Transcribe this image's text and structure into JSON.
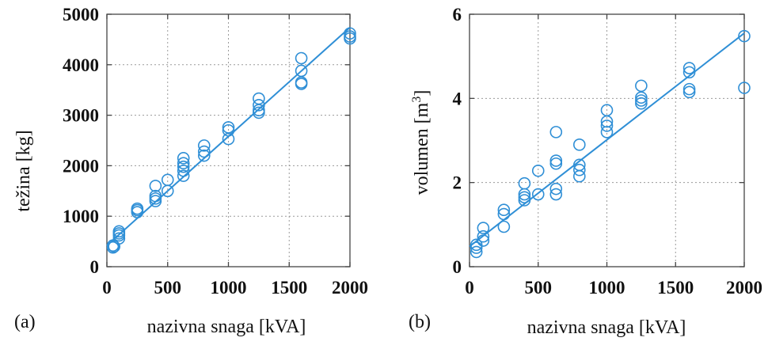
{
  "colors": {
    "series": "#2f8fd6",
    "frame": "#444444",
    "grid": "#9a9a9a"
  },
  "chart_data": [
    {
      "panel_label": "(a)",
      "type": "scatter",
      "xlabel": "nazivna snaga [kVA]",
      "ylabel": "težina [kg]",
      "xlim": [
        0,
        2000
      ],
      "ylim": [
        0,
        5000
      ],
      "xticks": [
        0,
        500,
        1000,
        1500,
        2000
      ],
      "yticks": [
        0,
        1000,
        2000,
        3000,
        4000,
        5000
      ],
      "xtick_labels": [
        "0",
        "500",
        "1000",
        "1500",
        "2000"
      ],
      "ytick_labels": [
        "0",
        "1000",
        "2000",
        "3000",
        "4000",
        "5000"
      ],
      "grid": true,
      "points": [
        [
          50,
          380
        ],
        [
          50,
          420
        ],
        [
          60,
          400
        ],
        [
          100,
          560
        ],
        [
          100,
          620
        ],
        [
          100,
          660
        ],
        [
          100,
          700
        ],
        [
          250,
          1080
        ],
        [
          250,
          1120
        ],
        [
          250,
          1150
        ],
        [
          400,
          1300
        ],
        [
          400,
          1350
        ],
        [
          400,
          1400
        ],
        [
          400,
          1600
        ],
        [
          500,
          1500
        ],
        [
          500,
          1720
        ],
        [
          630,
          1800
        ],
        [
          630,
          1900
        ],
        [
          630,
          1980
        ],
        [
          630,
          2050
        ],
        [
          630,
          2150
        ],
        [
          800,
          2200
        ],
        [
          800,
          2280
        ],
        [
          800,
          2400
        ],
        [
          1000,
          2530
        ],
        [
          1000,
          2700
        ],
        [
          1000,
          2760
        ],
        [
          1250,
          3050
        ],
        [
          1250,
          3100
        ],
        [
          1250,
          3200
        ],
        [
          1250,
          3330
        ],
        [
          1600,
          3620
        ],
        [
          1600,
          3650
        ],
        [
          1600,
          3880
        ],
        [
          1600,
          4130
        ],
        [
          2000,
          4520
        ],
        [
          2000,
          4560
        ],
        [
          2000,
          4620
        ]
      ],
      "fit_line": {
        "x": [
          0,
          2000
        ],
        "y": [
          420,
          4740
        ]
      }
    },
    {
      "panel_label": "(b)",
      "type": "scatter",
      "xlabel": "nazivna snaga [kVA]",
      "ylabel": "volumen [m",
      "ylabel_sup": "3",
      "ylabel_end": "]",
      "xlim": [
        0,
        2000
      ],
      "ylim": [
        0,
        6
      ],
      "xticks": [
        0,
        500,
        1000,
        1500,
        2000
      ],
      "yticks": [
        0,
        2,
        4,
        6
      ],
      "xtick_labels": [
        "0",
        "500",
        "1000",
        "1500",
        "2000"
      ],
      "ytick_labels": [
        "0",
        "2",
        "4",
        "6"
      ],
      "grid": true,
      "points": [
        [
          50,
          0.35
        ],
        [
          50,
          0.45
        ],
        [
          50,
          0.52
        ],
        [
          100,
          0.62
        ],
        [
          100,
          0.72
        ],
        [
          100,
          0.92
        ],
        [
          250,
          0.95
        ],
        [
          250,
          1.25
        ],
        [
          250,
          1.35
        ],
        [
          400,
          1.58
        ],
        [
          400,
          1.65
        ],
        [
          400,
          1.72
        ],
        [
          400,
          1.98
        ],
        [
          500,
          1.72
        ],
        [
          500,
          2.28
        ],
        [
          630,
          1.72
        ],
        [
          630,
          1.85
        ],
        [
          630,
          2.45
        ],
        [
          630,
          2.52
        ],
        [
          630,
          3.2
        ],
        [
          800,
          2.15
        ],
        [
          800,
          2.3
        ],
        [
          800,
          2.42
        ],
        [
          800,
          2.9
        ],
        [
          1000,
          3.2
        ],
        [
          1000,
          3.35
        ],
        [
          1000,
          3.45
        ],
        [
          1000,
          3.72
        ],
        [
          1250,
          3.88
        ],
        [
          1250,
          3.95
        ],
        [
          1250,
          4.02
        ],
        [
          1250,
          4.3
        ],
        [
          1600,
          4.15
        ],
        [
          1600,
          4.22
        ],
        [
          1600,
          4.62
        ],
        [
          1600,
          4.72
        ],
        [
          2000,
          4.25
        ],
        [
          2000,
          5.48
        ]
      ],
      "fit_line": {
        "x": [
          0,
          2000
        ],
        "y": [
          0.48,
          5.55
        ]
      }
    }
  ]
}
